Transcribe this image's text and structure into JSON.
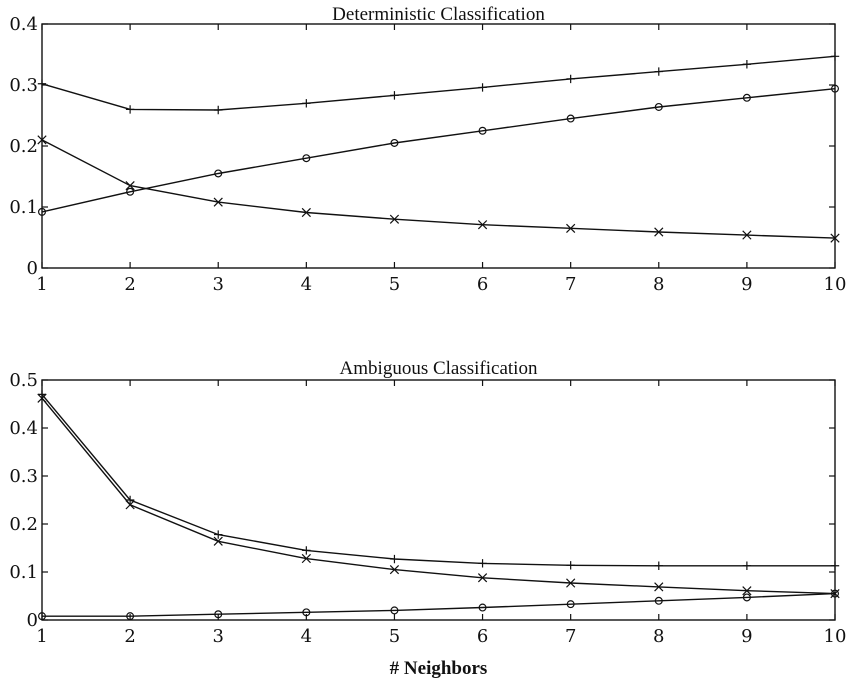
{
  "chart_data": [
    {
      "type": "line",
      "title": "Deterministic Classification",
      "xlabel": "",
      "ylabel": "",
      "x": [
        1,
        2,
        3,
        4,
        5,
        6,
        7,
        8,
        9,
        10
      ],
      "xlim": [
        1,
        10
      ],
      "ylim": [
        0,
        0.4
      ],
      "xticks": [
        "1",
        "2",
        "3",
        "4",
        "5",
        "6",
        "7",
        "8",
        "9",
        "10"
      ],
      "yticks": [
        "0",
        "0.1",
        "0.2",
        "0.3",
        "0.4"
      ],
      "grid": false,
      "series": [
        {
          "marker": "plus",
          "values": [
            0.302,
            0.26,
            0.259,
            0.27,
            0.283,
            0.296,
            0.31,
            0.322,
            0.334,
            0.347
          ]
        },
        {
          "marker": "circle",
          "values": [
            0.092,
            0.125,
            0.155,
            0.18,
            0.205,
            0.225,
            0.245,
            0.264,
            0.279,
            0.294
          ]
        },
        {
          "marker": "x",
          "values": [
            0.21,
            0.135,
            0.108,
            0.091,
            0.08,
            0.071,
            0.065,
            0.059,
            0.054,
            0.049
          ]
        }
      ]
    },
    {
      "type": "line",
      "title": "Ambiguous Classification",
      "xlabel": "# Neighbors",
      "ylabel": "",
      "x": [
        1,
        2,
        3,
        4,
        5,
        6,
        7,
        8,
        9,
        10
      ],
      "xlim": [
        1,
        10
      ],
      "ylim": [
        0,
        0.5
      ],
      "xticks": [
        "1",
        "2",
        "3",
        "4",
        "5",
        "6",
        "7",
        "8",
        "9",
        "10"
      ],
      "yticks": [
        "0",
        "0.1",
        "0.2",
        "0.3",
        "0.4",
        "0.5"
      ],
      "grid": false,
      "series": [
        {
          "marker": "plus",
          "values": [
            0.47,
            0.25,
            0.178,
            0.145,
            0.127,
            0.118,
            0.114,
            0.113,
            0.113,
            0.113
          ]
        },
        {
          "marker": "x",
          "values": [
            0.462,
            0.24,
            0.164,
            0.128,
            0.105,
            0.088,
            0.077,
            0.069,
            0.061,
            0.055
          ]
        },
        {
          "marker": "circle",
          "values": [
            0.008,
            0.008,
            0.012,
            0.016,
            0.02,
            0.026,
            0.033,
            0.04,
            0.047,
            0.055
          ]
        }
      ]
    }
  ]
}
